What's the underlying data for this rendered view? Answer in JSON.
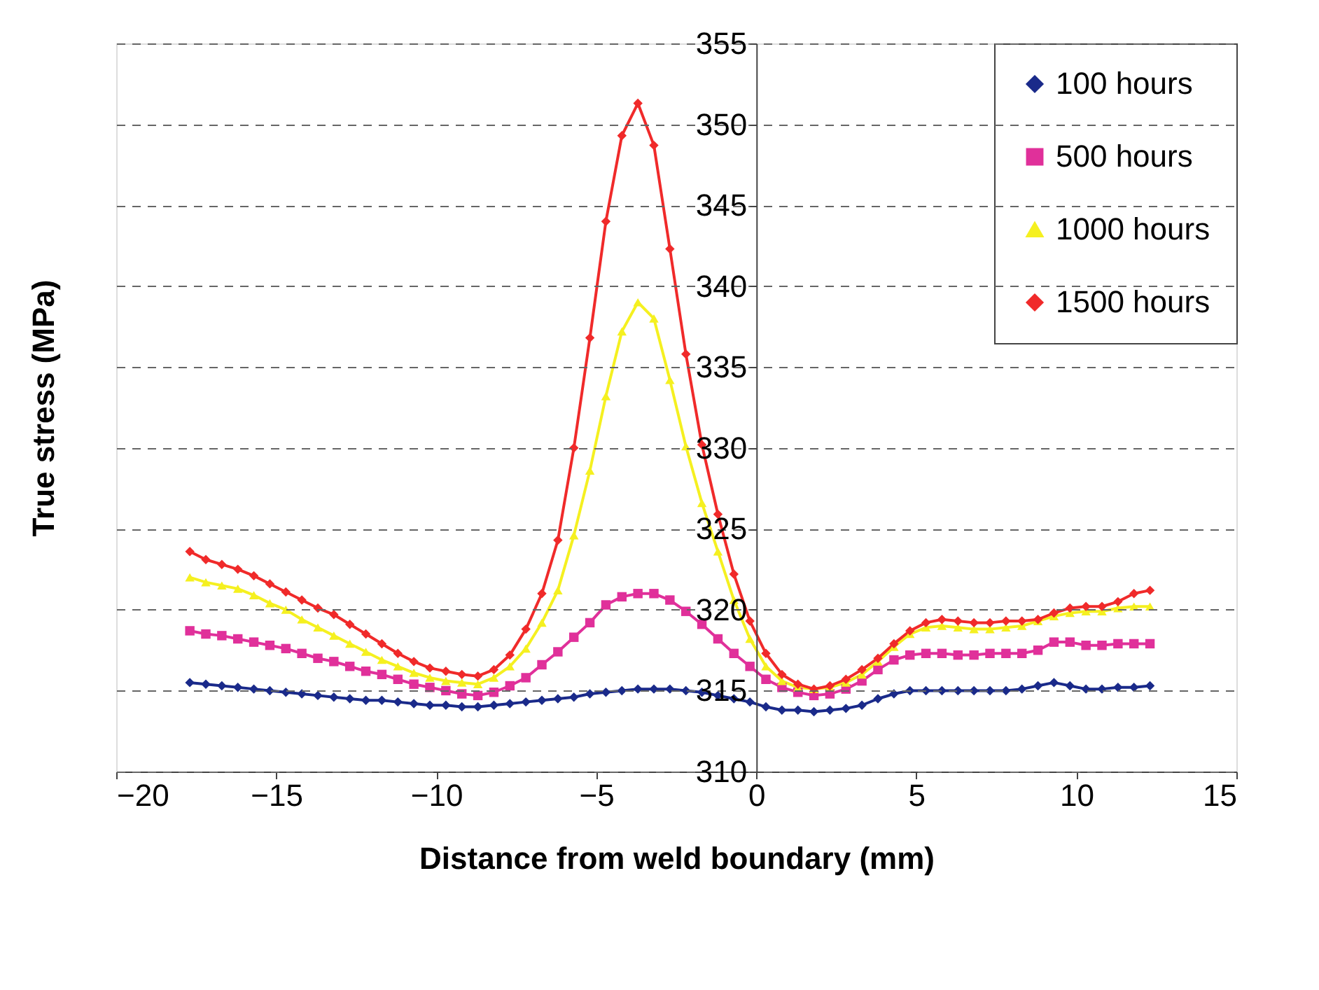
{
  "chart_data": {
    "type": "line",
    "xlabel": "Distance from weld boundary (mm)",
    "ylabel": "True stress (MPa)",
    "x": [
      -17.7,
      -17.2,
      -16.7,
      -16.2,
      -15.7,
      -15.2,
      -14.7,
      -14.2,
      -13.7,
      -13.2,
      -12.7,
      -12.2,
      -11.7,
      -11.2,
      -10.7,
      -10.2,
      -9.7,
      -9.2,
      -8.7,
      -8.2,
      -7.7,
      -7.2,
      -6.7,
      -6.2,
      -5.7,
      -5.2,
      -4.7,
      -4.2,
      -3.7,
      -3.2,
      -2.7,
      -2.2,
      -1.7,
      -1.2,
      -0.7,
      -0.2,
      0.3,
      0.8,
      1.3,
      1.8,
      2.3,
      2.8,
      3.3,
      3.8,
      4.3,
      4.8,
      5.3,
      5.8,
      6.3,
      6.8,
      7.3,
      7.8,
      8.3,
      8.8,
      9.3,
      9.8,
      10.3,
      10.8,
      11.3,
      11.8,
      12.3
    ],
    "series": [
      {
        "name": "100 hours",
        "color": "#1a2a8a",
        "marker": "diamond",
        "values": [
          315.5,
          315.4,
          315.3,
          315.2,
          315.1,
          315.0,
          314.9,
          314.8,
          314.7,
          314.6,
          314.5,
          314.4,
          314.4,
          314.3,
          314.2,
          314.1,
          314.1,
          314.0,
          314.0,
          314.1,
          314.2,
          314.3,
          314.4,
          314.5,
          314.6,
          314.8,
          314.9,
          315.0,
          315.1,
          315.1,
          315.1,
          315.0,
          314.9,
          314.7,
          314.5,
          314.3,
          314.0,
          313.8,
          313.8,
          313.7,
          313.8,
          313.9,
          314.1,
          314.5,
          314.8,
          315.0,
          315.0,
          315.0,
          315.0,
          315.0,
          315.0,
          315.0,
          315.1,
          315.3,
          315.5,
          315.3,
          315.1,
          315.1,
          315.2,
          315.2,
          315.3
        ]
      },
      {
        "name": "500 hours",
        "color": "#e0309a",
        "marker": "square",
        "values": [
          318.7,
          318.5,
          318.4,
          318.2,
          318.0,
          317.8,
          317.6,
          317.3,
          317.0,
          316.8,
          316.5,
          316.2,
          316.0,
          315.7,
          315.4,
          315.2,
          315.0,
          314.8,
          314.7,
          314.9,
          315.3,
          315.8,
          316.6,
          317.4,
          318.3,
          319.2,
          320.3,
          320.8,
          321.0,
          321.0,
          320.6,
          319.9,
          319.1,
          318.2,
          317.3,
          316.5,
          315.7,
          315.2,
          314.9,
          314.7,
          314.8,
          315.1,
          315.6,
          316.3,
          316.9,
          317.2,
          317.3,
          317.3,
          317.2,
          317.2,
          317.3,
          317.3,
          317.3,
          317.5,
          318.0,
          318.0,
          317.8,
          317.8,
          317.9,
          317.9,
          317.9
        ]
      },
      {
        "name": "1000 hours",
        "color": "#f5f020",
        "marker": "triangle",
        "values": [
          322.0,
          321.7,
          321.5,
          321.3,
          320.9,
          320.4,
          320.0,
          319.4,
          318.9,
          318.4,
          317.9,
          317.4,
          316.9,
          316.5,
          316.1,
          315.8,
          315.6,
          315.5,
          315.4,
          315.8,
          316.5,
          317.6,
          319.2,
          321.2,
          324.6,
          328.6,
          333.2,
          337.2,
          339.0,
          338.0,
          334.2,
          330.1,
          326.6,
          323.6,
          320.6,
          318.2,
          316.5,
          315.6,
          315.2,
          315.1,
          315.2,
          315.5,
          316.0,
          316.8,
          317.7,
          318.5,
          318.9,
          319.0,
          318.9,
          318.8,
          318.8,
          318.9,
          319.0,
          319.3,
          319.6,
          319.8,
          319.9,
          319.9,
          320.1,
          320.2,
          320.2
        ]
      },
      {
        "name": "1500 hours",
        "color": "#f02a2a",
        "marker": "diamond",
        "values": [
          323.6,
          323.1,
          322.8,
          322.5,
          322.1,
          321.6,
          321.1,
          320.6,
          320.1,
          319.7,
          319.1,
          318.5,
          317.9,
          317.3,
          316.8,
          316.4,
          316.2,
          316.0,
          315.9,
          316.3,
          317.2,
          318.8,
          321.0,
          324.3,
          330.0,
          336.8,
          344.0,
          349.3,
          351.3,
          348.7,
          342.3,
          335.8,
          330.2,
          325.9,
          322.2,
          319.3,
          317.3,
          316.0,
          315.4,
          315.1,
          315.3,
          315.7,
          316.3,
          317.0,
          317.9,
          318.7,
          319.2,
          319.4,
          319.3,
          319.2,
          319.2,
          319.3,
          319.3,
          319.4,
          319.8,
          320.1,
          320.2,
          320.2,
          320.5,
          321.0,
          321.2
        ]
      }
    ],
    "xlim": [
      -20,
      15
    ],
    "xticks": [
      -20,
      -15,
      -10,
      -5,
      0,
      5,
      10,
      15
    ],
    "ylim": [
      310,
      355
    ],
    "yticks": [
      310,
      315,
      320,
      325,
      330,
      335,
      340,
      345,
      350,
      355
    ],
    "grid": "y",
    "legend": "top right",
    "line_style": "solid"
  }
}
